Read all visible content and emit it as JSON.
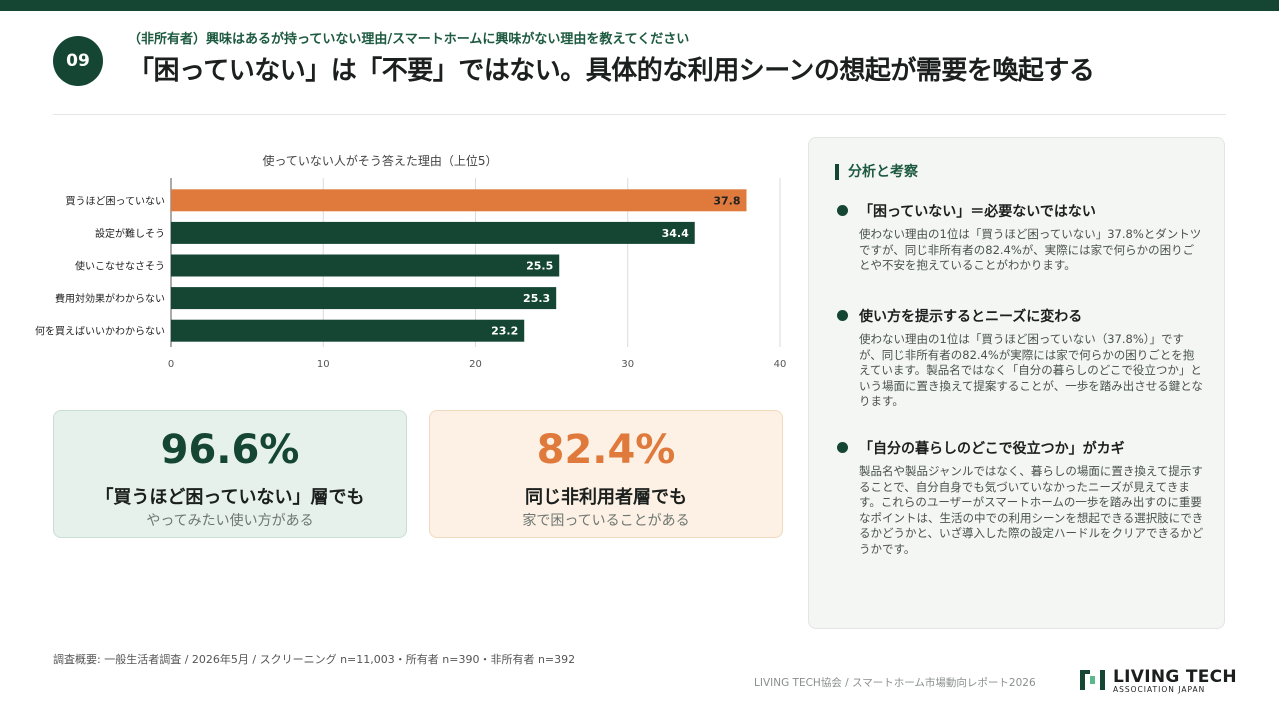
{
  "header": {
    "badge": "09",
    "subtitle": "（非所有者）興味はあるが持っていない理由/スマートホームに興味がない理由を教えてください",
    "title": "「困っていない」は「不要」ではない。具体的な利用シーンの想起が需要を喚起する"
  },
  "chart_data": {
    "type": "bar",
    "orientation": "horizontal",
    "title": "使っていない人がそう答えた理由（上位5）",
    "categories": [
      "買うほど困っていない",
      "設定が難しそう",
      "使いこなせなさそう",
      "費用対効果がわからない",
      "何を買えばいいかわからない"
    ],
    "values": [
      37.8,
      34.4,
      25.5,
      25.3,
      23.2
    ],
    "value_labels": [
      "37.8",
      "34.4",
      "25.5",
      "25.3",
      "23.2"
    ],
    "xlim": [
      0,
      40
    ],
    "xticks": [
      "0",
      "10",
      "20",
      "30",
      "40"
    ],
    "grid": true,
    "colors": [
      "#e07a3c",
      "#154634",
      "#154634",
      "#154634",
      "#154634"
    ]
  },
  "cards": [
    {
      "value": "96.6%",
      "label": "「買うほど困っていない」層でも",
      "sub": "やってみたい使い方がある",
      "color": "#154634"
    },
    {
      "value": "82.4%",
      "label": "同じ非利用者層でも",
      "sub": "家で困っていることがある",
      "color": "#e07a3c"
    }
  ],
  "panel": {
    "heading": "分析と考察",
    "points": [
      {
        "heading": "「困っていない」＝必要ないではない",
        "body": "使わない理由の1位は「買うほど困っていない」37.8%とダントツですが、同じ非所有者の82.4%が、実際には家で何らかの困りごとや不安を抱えていることがわかります。"
      },
      {
        "heading": "使い方を提示するとニーズに変わる",
        "body": "使わない理由の1位は「買うほど困っていない（37.8%）」ですが、同じ非所有者の82.4%が実際には家で何らかの困りごとを抱えています。製品名ではなく「自分の暮らしのどこで役立つか」という場面に置き換えて提案することが、一歩を踏み出させる鍵となります。"
      },
      {
        "heading": "「自分の暮らしのどこで役立つか」がカギ",
        "body": "製品名や製品ジャンルではなく、暮らしの場面に置き換えて提示することで、自分自身でも気づいていなかったニーズが見えてきます。これらのユーザーがスマートホームの一歩を踏み出すのに重要なポイントは、生活の中での利用シーンを想起できる選択肢にできるかどうかと、いざ導入した際の設定ハードルをクリアできるかどうかです。"
      }
    ]
  },
  "footer": {
    "note": "調査概要: 一般生活者調査 / 2026年5月 / スクリーニング n=11,003・所有者 n=390・非所有者 n=392",
    "credit": "LIVING TECH協会 / スマートホーム市場動向レポート2026",
    "logo_main": "LIVING TECH",
    "logo_sub": "ASSOCIATION JAPAN"
  }
}
